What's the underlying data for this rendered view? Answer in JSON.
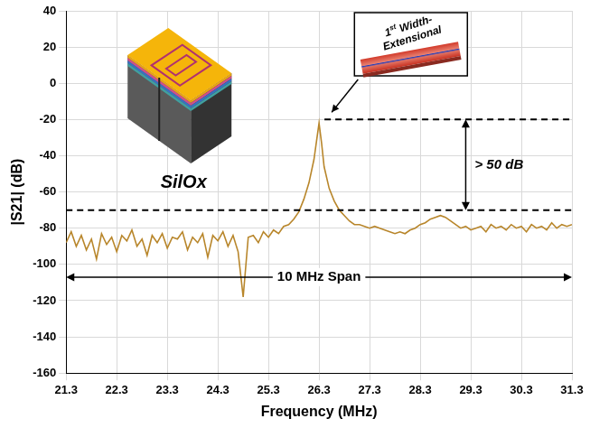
{
  "chart_data": {
    "type": "line",
    "x_label": "Frequency (MHz)",
    "y_label": "|S21| (dB)",
    "color": "#b8862b",
    "x": [
      21.3,
      21.4,
      21.5,
      21.6,
      21.7,
      21.8,
      21.9,
      22.0,
      22.1,
      22.2,
      22.3,
      22.4,
      22.5,
      22.6,
      22.7,
      22.8,
      22.9,
      23.0,
      23.1,
      23.2,
      23.3,
      23.4,
      23.5,
      23.6,
      23.7,
      23.8,
      23.9,
      24.0,
      24.1,
      24.2,
      24.3,
      24.4,
      24.5,
      24.6,
      24.7,
      24.8,
      24.9,
      25.0,
      25.1,
      25.2,
      25.3,
      25.4,
      25.5,
      25.6,
      25.7,
      25.8,
      25.9,
      26.0,
      26.1,
      26.2,
      26.25,
      26.3,
      26.35,
      26.4,
      26.5,
      26.6,
      26.7,
      26.8,
      26.9,
      27.0,
      27.1,
      27.2,
      27.3,
      27.4,
      27.5,
      27.6,
      27.7,
      27.8,
      27.9,
      28.0,
      28.1,
      28.2,
      28.3,
      28.4,
      28.5,
      28.6,
      28.7,
      28.8,
      28.9,
      29.0,
      29.1,
      29.2,
      29.3,
      29.4,
      29.5,
      29.6,
      29.7,
      29.8,
      29.9,
      30.0,
      30.1,
      30.2,
      30.3,
      30.4,
      30.5,
      30.6,
      30.7,
      30.8,
      30.9,
      31.0,
      31.1,
      31.2,
      31.3
    ],
    "values": [
      -88,
      -82,
      -90,
      -84,
      -92,
      -86,
      -97,
      -83,
      -89,
      -85,
      -93,
      -84,
      -87,
      -81,
      -90,
      -86,
      -95,
      -84,
      -88,
      -83,
      -91,
      -85,
      -86,
      -82,
      -92,
      -85,
      -88,
      -83,
      -96,
      -84,
      -87,
      -82,
      -90,
      -84,
      -93,
      -118,
      -85,
      -84,
      -88,
      -82,
      -85,
      -81,
      -83,
      -79,
      -78,
      -75,
      -71,
      -64,
      -55,
      -42,
      -32,
      -22,
      -33,
      -46,
      -58,
      -65,
      -70,
      -73,
      -76,
      -78,
      -78,
      -79,
      -80,
      -79,
      -80,
      -81,
      -82,
      -83,
      -82,
      -83,
      -81,
      -80,
      -78,
      -77,
      -75,
      -74,
      -73,
      -74,
      -76,
      -78,
      -80,
      -79,
      -81,
      -80,
      -79,
      -82,
      -78,
      -80,
      -79,
      -81,
      -78,
      -80,
      -79,
      -82,
      -78,
      -80,
      -79,
      -81,
      -77,
      -80,
      -78,
      -79,
      -78
    ],
    "xlim": [
      21.3,
      31.3
    ],
    "xticks": [
      21.3,
      22.3,
      23.3,
      24.3,
      25.3,
      26.3,
      27.3,
      28.3,
      29.3,
      30.3,
      31.3
    ],
    "ylim": [
      -160,
      40
    ],
    "yticks": [
      -160,
      -140,
      -120,
      -100,
      -80,
      -60,
      -40,
      -20,
      0,
      20,
      40
    ],
    "grid": true,
    "reference_lines": [
      -20,
      -70
    ],
    "inset_title": "SilOx",
    "mode_label": "1st Width-Extensional",
    "difference_label": "> 50 dB",
    "span_label": "10 MHz Span"
  }
}
